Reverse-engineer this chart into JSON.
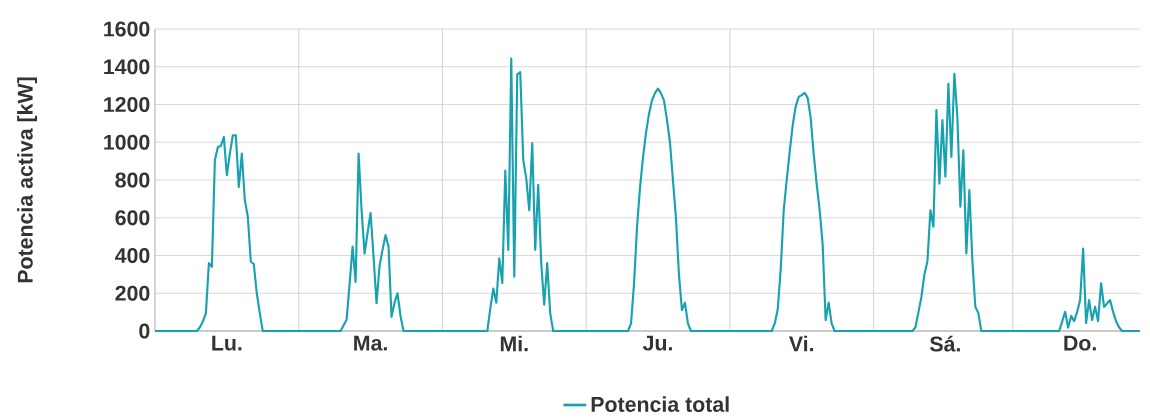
{
  "chart_data": {
    "type": "line",
    "ylabel": "Potencia activa [kW]",
    "categories": [
      null,
      null,
      null,
      null,
      null,
      null,
      null,
      null,
      null,
      null,
      null,
      null,
      null,
      null,
      null,
      null,
      null,
      null,
      null,
      null,
      null,
      null,
      null,
      null,
      "Lu.",
      null,
      null,
      null,
      null,
      null,
      null,
      null,
      null,
      null,
      null,
      null,
      null,
      null,
      null,
      null,
      null,
      null,
      null,
      null,
      null,
      null,
      null,
      null,
      null,
      null,
      null,
      null,
      null,
      null,
      null,
      null,
      null,
      null,
      null,
      null,
      null,
      null,
      null,
      null,
      null,
      null,
      null,
      null,
      null,
      null,
      null,
      null,
      "Ma.",
      null,
      null,
      null,
      null,
      null,
      null,
      null,
      null,
      null,
      null,
      null,
      null,
      null,
      null,
      null,
      null,
      null,
      null,
      null,
      null,
      null,
      null,
      null,
      null,
      null,
      null,
      null,
      null,
      null,
      null,
      null,
      null,
      null,
      null,
      null,
      null,
      null,
      null,
      null,
      null,
      null,
      null,
      null,
      null,
      null,
      null,
      null,
      "Mi.",
      null,
      null,
      null,
      null,
      null,
      null,
      null,
      null,
      null,
      null,
      null,
      null,
      null,
      null,
      null,
      null,
      null,
      null,
      null,
      null,
      null,
      null,
      null,
      null,
      null,
      null,
      null,
      null,
      null,
      null,
      null,
      null,
      null,
      null,
      null,
      null,
      null,
      null,
      null,
      null,
      null,
      null,
      null,
      null,
      null,
      null,
      null,
      "Ju.",
      null,
      null,
      null,
      null,
      null,
      null,
      null,
      null,
      null,
      null,
      null,
      null,
      null,
      null,
      null,
      null,
      null,
      null,
      null,
      null,
      null,
      null,
      null,
      null,
      null,
      null,
      null,
      null,
      null,
      null,
      null,
      null,
      null,
      null,
      null,
      null,
      null,
      null,
      null,
      null,
      null,
      null,
      null,
      null,
      null,
      null,
      null,
      "Vi.",
      null,
      null,
      null,
      null,
      null,
      null,
      null,
      null,
      null,
      null,
      null,
      null,
      null,
      null,
      null,
      null,
      null,
      null,
      null,
      null,
      null,
      null,
      null,
      null,
      null,
      null,
      null,
      null,
      null,
      null,
      null,
      null,
      null,
      null,
      null,
      null,
      null,
      null,
      null,
      null,
      null,
      null,
      null,
      null,
      null,
      null,
      null,
      "Sá.",
      null,
      null,
      null,
      null,
      null,
      null,
      null,
      null,
      null,
      null,
      null,
      null,
      null,
      null,
      null,
      null,
      null,
      null,
      null,
      null,
      null,
      null,
      null,
      null,
      null,
      null,
      null,
      null,
      null,
      null,
      null,
      null,
      null,
      null,
      null,
      null,
      null,
      null,
      null,
      null,
      null,
      null,
      null,
      null,
      "Do.",
      null,
      null,
      null,
      null,
      null,
      null,
      null,
      null,
      null,
      null,
      null,
      null,
      null,
      null,
      null,
      null,
      null,
      null,
      null,
      null
    ],
    "ylim": [
      0,
      1600
    ],
    "yticks": [
      0,
      200,
      400,
      600,
      800,
      1000,
      1200,
      1400,
      1600
    ],
    "grid": true,
    "legend": "bottom",
    "marker": "none",
    "line_style": "solid",
    "series": [
      {
        "name": "Potencia total",
        "color": "#17a2b0",
        "values": [
          0,
          0,
          0,
          0,
          0,
          0,
          0,
          0,
          0,
          0,
          0,
          0,
          0,
          0,
          0,
          20,
          50,
          95,
          360,
          340,
          905,
          975,
          980,
          1028,
          825,
          940,
          1037,
          1037,
          763,
          940,
          695,
          605,
          367,
          355,
          200,
          95,
          0,
          0,
          0,
          0,
          0,
          0,
          0,
          0,
          0,
          0,
          0,
          0,
          0,
          0,
          0,
          0,
          0,
          0,
          0,
          0,
          0,
          0,
          0,
          0,
          0,
          0,
          0,
          30,
          60,
          250,
          447,
          260,
          940,
          640,
          410,
          520,
          625,
          393,
          148,
          345,
          430,
          508,
          447,
          75,
          150,
          200,
          80,
          0,
          0,
          0,
          0,
          0,
          0,
          0,
          0,
          0,
          0,
          0,
          0,
          0,
          0,
          0,
          0,
          0,
          0,
          0,
          0,
          0,
          0,
          0,
          0,
          0,
          0,
          0,
          0,
          0,
          120,
          225,
          150,
          385,
          255,
          850,
          430,
          1443,
          288,
          1360,
          1372,
          905,
          810,
          640,
          995,
          430,
          775,
          360,
          140,
          360,
          95,
          0,
          0,
          0,
          0,
          0,
          0,
          0,
          0,
          0,
          0,
          0,
          0,
          0,
          0,
          0,
          0,
          0,
          0,
          0,
          0,
          0,
          0,
          0,
          0,
          0,
          0,
          40,
          250,
          550,
          760,
          920,
          1050,
          1150,
          1222,
          1260,
          1284,
          1260,
          1222,
          1120,
          1000,
          800,
          600,
          300,
          111,
          150,
          40,
          0,
          0,
          0,
          0,
          0,
          0,
          0,
          0,
          0,
          0,
          0,
          0,
          0,
          0,
          0,
          0,
          0,
          0,
          0,
          0,
          0,
          0,
          0,
          0,
          0,
          0,
          0,
          0,
          40,
          115,
          330,
          640,
          800,
          950,
          1090,
          1190,
          1240,
          1250,
          1262,
          1235,
          1130,
          940,
          780,
          640,
          460,
          58,
          150,
          40,
          0,
          0,
          0,
          0,
          0,
          0,
          0,
          0,
          0,
          0,
          0,
          0,
          0,
          0,
          0,
          0,
          0,
          0,
          0,
          0,
          0,
          0,
          0,
          0,
          0,
          0,
          0,
          20,
          100,
          182,
          300,
          370,
          640,
          553,
          1170,
          781,
          1117,
          818,
          1310,
          922,
          1363,
          1134,
          658,
          957,
          411,
          747,
          375,
          128,
          95,
          0,
          0,
          0,
          0,
          0,
          0,
          0,
          0,
          0,
          0,
          0,
          0,
          0,
          0,
          0,
          0,
          0,
          0,
          0,
          0,
          0,
          0,
          0,
          0,
          0,
          0,
          0,
          50,
          102,
          18,
          80,
          52,
          100,
          164,
          437,
          42,
          164,
          58,
          128,
          52,
          252,
          128,
          146,
          164,
          102,
          52,
          20,
          0,
          0,
          0,
          0,
          0,
          0,
          0
        ]
      }
    ]
  }
}
